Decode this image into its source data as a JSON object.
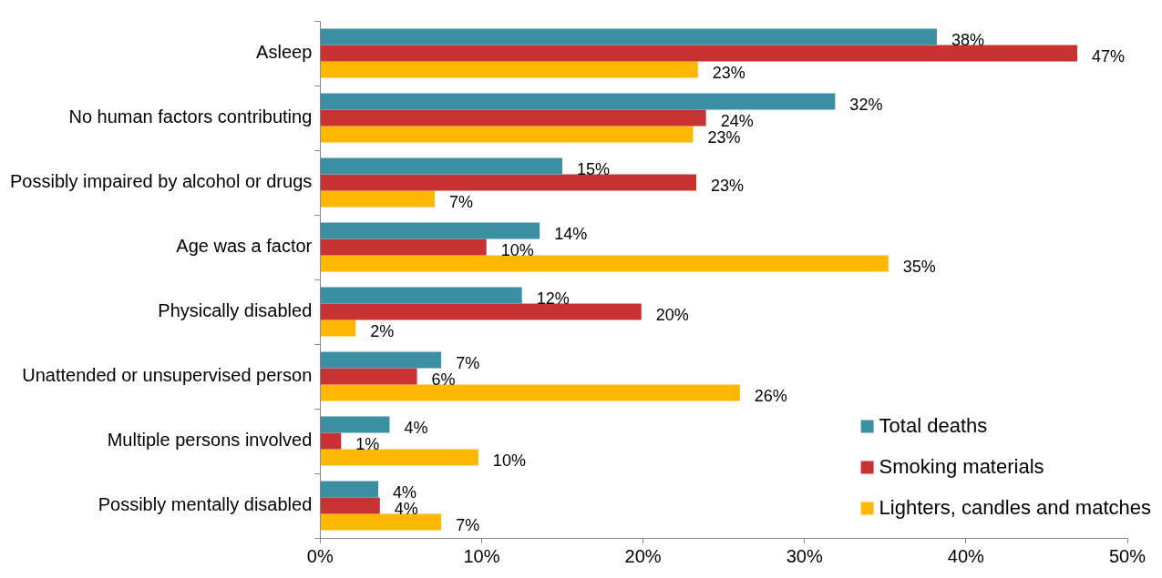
{
  "chart_data": {
    "type": "bar",
    "orientation": "horizontal",
    "categories": [
      "Asleep",
      "No human factors contributing",
      "Possibly impaired by alcohol or drugs",
      "Age was a factor",
      "Physically disabled",
      "Unattended or unsupervised person",
      "Multiple persons involved",
      "Possibly mentally disabled"
    ],
    "series": [
      {
        "name": "Total deaths",
        "color": "#3a8fa3",
        "values": [
          38.2,
          31.9,
          15,
          13.6,
          12.5,
          7.5,
          4.3,
          3.6
        ],
        "value_labels": [
          "38%",
          "32%",
          "15%",
          "14%",
          "12%",
          "7%",
          "4%",
          "4%"
        ]
      },
      {
        "name": "Smoking materials",
        "color": "#c83232",
        "values": [
          46.9,
          23.9,
          23.3,
          10.3,
          19.9,
          6,
          1.3,
          3.7
        ],
        "value_labels": [
          "47%",
          "24%",
          "23%",
          "10%",
          "20%",
          "6%",
          "1%",
          "4%"
        ]
      },
      {
        "name": "Lighters, candles and matches",
        "color": "#ffb800",
        "values": [
          23.4,
          23.1,
          7.1,
          35.2,
          2.2,
          26,
          9.8,
          7.5
        ],
        "value_labels": [
          "23%",
          "23%",
          "7%",
          "35%",
          "2%",
          "26%",
          "10%",
          "7%"
        ]
      }
    ],
    "xlim": [
      0,
      50
    ],
    "xticks": [
      {
        "value": 0,
        "label": "0%"
      },
      {
        "value": 10,
        "label": "10%"
      },
      {
        "value": 20,
        "label": "20%"
      },
      {
        "value": 30,
        "label": "30%"
      },
      {
        "value": 40,
        "label": "40%"
      },
      {
        "value": 50,
        "label": "50%"
      }
    ],
    "grid": false,
    "legend": "bottom right"
  }
}
